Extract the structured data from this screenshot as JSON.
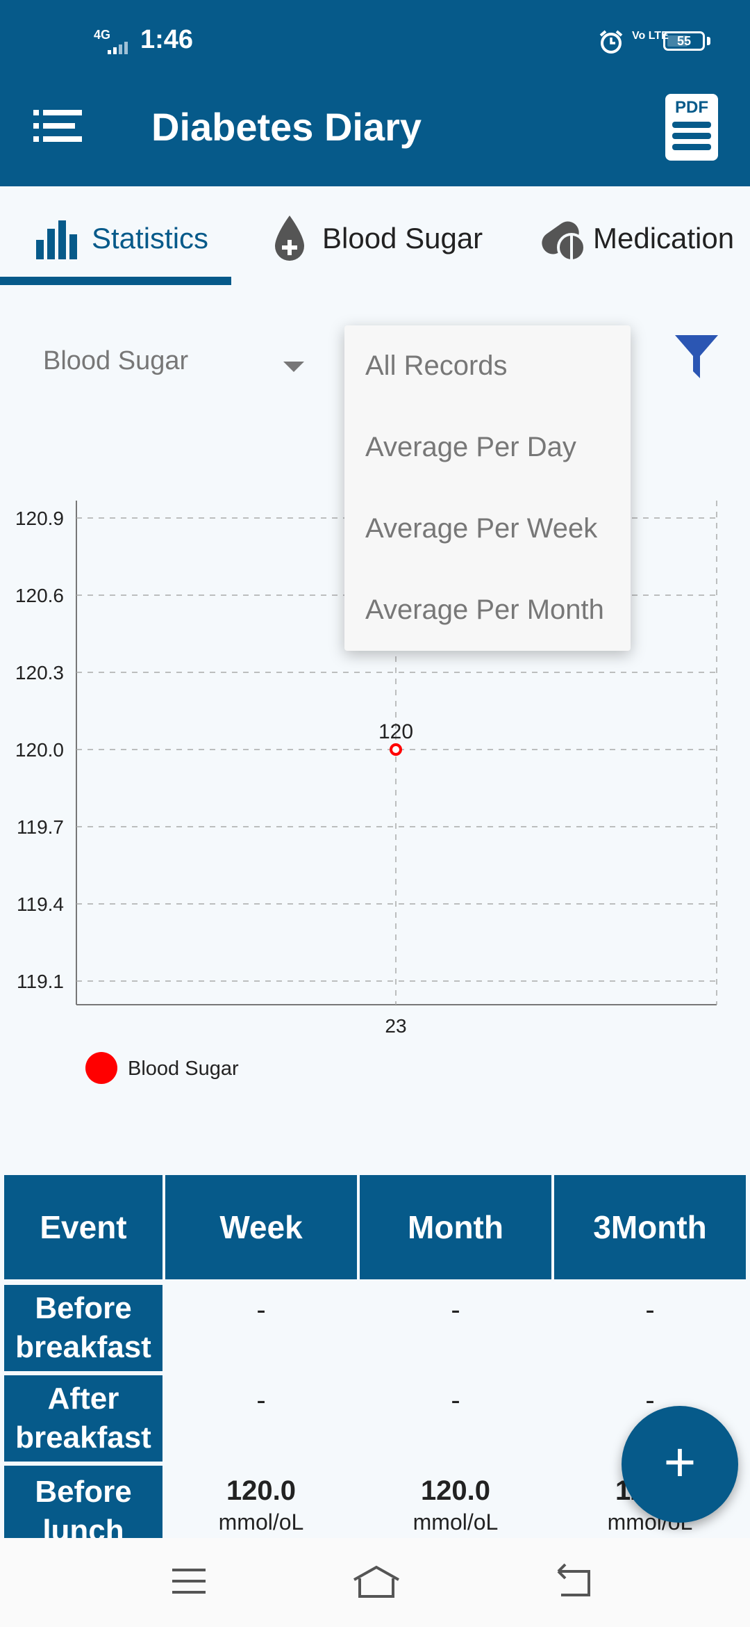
{
  "status_bar": {
    "network": "4G",
    "time": "1:46",
    "volte": "Vo LTE",
    "battery": "55"
  },
  "header": {
    "title": "Diabetes Diary",
    "pdf_label": "PDF"
  },
  "tabs": [
    {
      "label": "Statistics",
      "active": true
    },
    {
      "label": "Blood Sugar"
    },
    {
      "label": "Medication"
    }
  ],
  "controls": {
    "type_select": "Blood Sugar"
  },
  "dropdown": {
    "options": [
      "All Records",
      "Average Per Day",
      "Average Per Week",
      "Average Per Month"
    ]
  },
  "chart_data": {
    "type": "scatter",
    "x_ticks": [
      "23"
    ],
    "y_ticks": [
      "120.9",
      "120.6",
      "120.3",
      "120.0",
      "119.7",
      "119.4",
      "119.1"
    ],
    "ylim": [
      119.1,
      120.9
    ],
    "series": [
      {
        "name": "Blood Sugar",
        "color": "#ff0000",
        "points": [
          {
            "x": "23",
            "y": 120.0,
            "label": "120"
          }
        ]
      }
    ],
    "grid": true,
    "legend": "bottom-left"
  },
  "table": {
    "headers": [
      "Event",
      "Week",
      "Month",
      "3Month"
    ],
    "rows": [
      {
        "event": "Before breakfast",
        "values": [
          "-",
          "-",
          "-"
        ]
      },
      {
        "event": "After breakfast",
        "values": [
          "-",
          "-",
          "-"
        ]
      },
      {
        "event": "Before lunch",
        "values": [
          "120.0",
          "120.0",
          "120.0"
        ],
        "units": [
          "mmol/oL",
          "mmol/oL",
          "mmol/oL"
        ]
      }
    ]
  },
  "fab": {
    "label": "+"
  }
}
